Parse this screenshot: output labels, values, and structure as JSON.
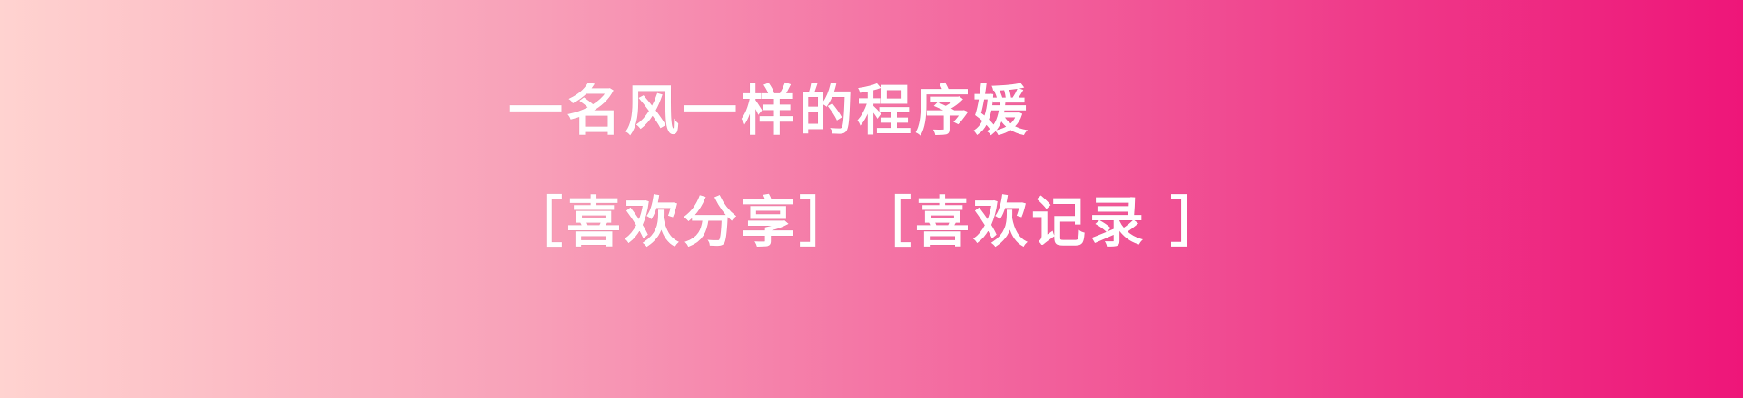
{
  "banner": {
    "headline": "一名风一样的程序媛",
    "tagline_part1": "［喜欢分享］",
    "tagline_part2": "［喜欢记录 ］"
  },
  "colors": {
    "gradient_start": "#ffd3d0",
    "gradient_end": "#ee1679",
    "text": "#ffffff"
  }
}
